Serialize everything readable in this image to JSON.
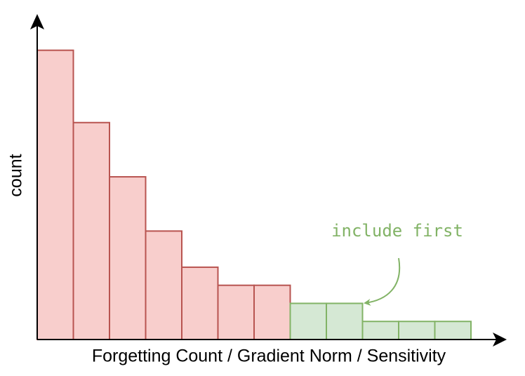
{
  "chart_data": {
    "type": "histogram",
    "xlabel": "Forgetting Count / Gradient Norm / Sensitivity",
    "ylabel": "count",
    "categories": [
      null,
      null,
      null,
      null,
      null,
      null,
      null,
      null,
      null,
      null,
      null,
      null
    ],
    "values": [
      16,
      12,
      9,
      6,
      4,
      3,
      3,
      2,
      2,
      1,
      1,
      1
    ],
    "colors": [
      "#f8cecc",
      "#f8cecc",
      "#f8cecc",
      "#f8cecc",
      "#f8cecc",
      "#f8cecc",
      "#f8cecc",
      "#d5e8d4",
      "#d5e8d4",
      "#d5e8d4",
      "#d5e8d4",
      "#d5e8d4"
    ],
    "edge_colors": [
      "#b85450",
      "#b85450",
      "#b85450",
      "#b85450",
      "#b85450",
      "#b85450",
      "#b85450",
      "#82b366",
      "#82b366",
      "#82b366",
      "#82b366",
      "#82b366"
    ],
    "ylim": [
      0,
      17.5
    ],
    "annotation": {
      "text": "include first",
      "color": "#82b366"
    }
  }
}
